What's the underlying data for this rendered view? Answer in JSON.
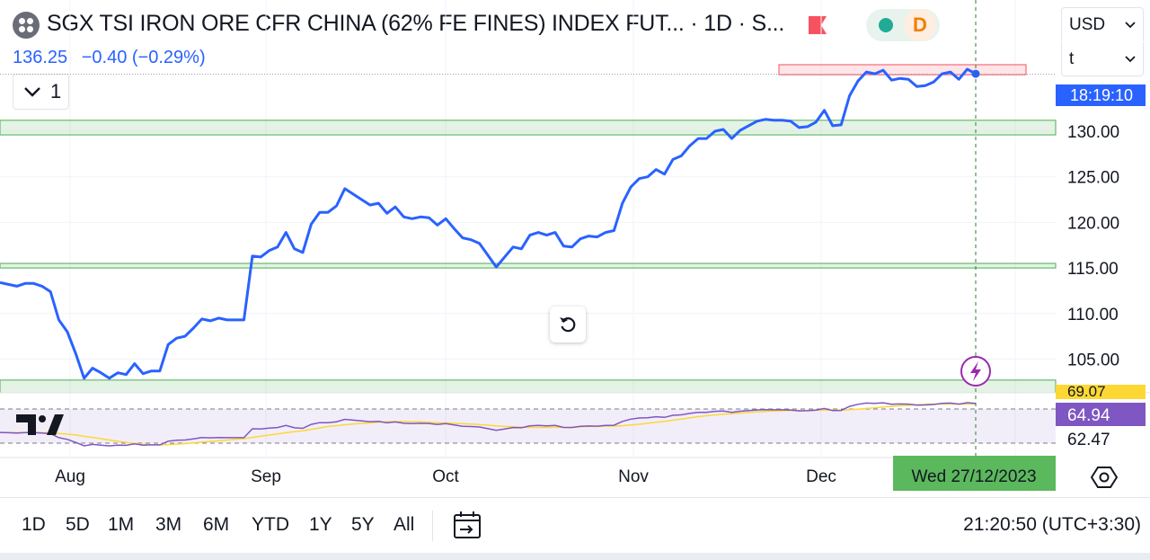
{
  "header": {
    "title": "SGX TSI IRON ORE CFR CHINA (62% FE FINES) INDEX FUT... · 1D · S...",
    "badge": "D",
    "price": "136.25",
    "change": "−0.40 (−0.29%)",
    "legend_count": "1"
  },
  "currency_select": {
    "value": "USD"
  },
  "unit_select": {
    "value": "t"
  },
  "price_scale": {
    "ticks": [
      "130.00",
      "125.00",
      "120.00",
      "115.00",
      "110.00",
      "105.00"
    ],
    "time_label": "18:19:10"
  },
  "indicator_scale": {
    "current_label": "64.94",
    "low_label": "62.47",
    "partial_label": "69.07"
  },
  "time_axis": {
    "labels": [
      "Aug",
      "Sep",
      "Oct",
      "Nov",
      "Dec"
    ],
    "crosshair_label": "Wed 27/12/2023"
  },
  "bottom_bar": {
    "ranges": [
      "1D",
      "5D",
      "1M",
      "3M",
      "6M",
      "YTD",
      "1Y",
      "5Y",
      "All"
    ],
    "clock": "21:20:50 (UTC+3:30)"
  },
  "colors": {
    "line": "#2962ff",
    "zone_green": "#4caf50",
    "zone_red": "#f7525f",
    "rsi_line": "#7e57c2",
    "rsi_ma": "#fdd835",
    "crosshair_label_bg": "#5cb85c",
    "lightning": "#9c27b0"
  },
  "chart_data": {
    "type": "line",
    "x_axis_ticks": [
      "Aug",
      "Sep",
      "Oct",
      "Nov",
      "Dec"
    ],
    "y_axis_ticks": [
      130,
      125,
      120,
      115,
      110,
      105
    ],
    "ylim": [
      102,
      138
    ],
    "last_price": 136.25,
    "price_series": [
      113.4,
      113.2,
      113.0,
      113.3,
      113.3,
      113.0,
      112.4,
      109.3,
      108.0,
      105.6,
      102.9,
      104.0,
      103.5,
      102.9,
      103.5,
      103.3,
      104.5,
      103.4,
      103.7,
      103.7,
      106.6,
      107.3,
      107.5,
      108.4,
      109.4,
      109.2,
      109.5,
      109.3,
      109.3,
      109.3,
      116.3,
      116.2,
      116.9,
      117.3,
      118.9,
      117.1,
      116.7,
      119.8,
      121.1,
      121.1,
      121.8,
      123.7,
      123.1,
      122.5,
      121.9,
      122.1,
      121.0,
      121.7,
      120.6,
      120.4,
      120.6,
      120.5,
      119.7,
      120.4,
      119.3,
      118.3,
      118.1,
      117.7,
      116.4,
      115.1,
      116.2,
      117.3,
      117.1,
      118.6,
      118.9,
      118.6,
      118.9,
      117.4,
      117.3,
      118.2,
      118.5,
      118.4,
      118.9,
      119.1,
      122.1,
      123.9,
      124.8,
      125.0,
      125.8,
      125.3,
      126.9,
      127.3,
      128.4,
      129.2,
      129.2,
      130.0,
      130.2,
      129.2,
      130.1,
      130.6,
      131.1,
      131.3,
      131.2,
      131.2,
      131.1,
      130.4,
      130.5,
      131.0,
      132.3,
      130.6,
      130.7,
      133.9,
      135.5,
      136.5,
      136.3,
      136.7,
      135.6,
      135.8,
      135.7,
      134.9,
      135.0,
      135.4,
      136.3,
      136.5,
      135.7,
      136.8,
      136.3
    ],
    "zones": [
      {
        "type": "resistance",
        "from": 136.2,
        "to": 137.3
      },
      {
        "type": "support",
        "from": 129.6,
        "to": 131.2
      },
      {
        "type": "support",
        "from": 115.0,
        "to": 115.5
      },
      {
        "type": "support",
        "from": 101.0,
        "to": 102.7
      }
    ],
    "indicator": {
      "current": 64.94,
      "band_low": 62.47,
      "band_high": 69.07
    }
  }
}
